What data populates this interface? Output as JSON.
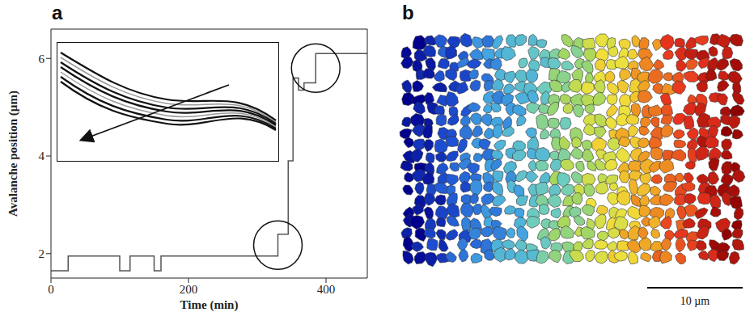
{
  "chart_data": [
    {
      "panel": "a",
      "type": "line",
      "line_style": "step",
      "color": "#555555",
      "x": [
        0,
        25,
        100,
        115,
        150,
        160,
        330,
        345,
        352,
        360,
        368,
        372,
        385,
        460
      ],
      "values": [
        1.65,
        1.95,
        1.65,
        1.95,
        1.65,
        1.95,
        2.4,
        3.9,
        5.6,
        5.35,
        5.5,
        5.5,
        6.1,
        6.1
      ],
      "x_label": "Time (min)",
      "y_label": "Avalanche position (µm)",
      "xlim": [
        0,
        460
      ],
      "xticks": [
        0,
        200,
        400
      ],
      "ylim": [
        1.5,
        6.6
      ],
      "yticks": [
        2,
        4,
        6
      ],
      "grid": false
    }
  ],
  "image": {
    "panel": "b",
    "scale_bar": "10 µm"
  }
}
